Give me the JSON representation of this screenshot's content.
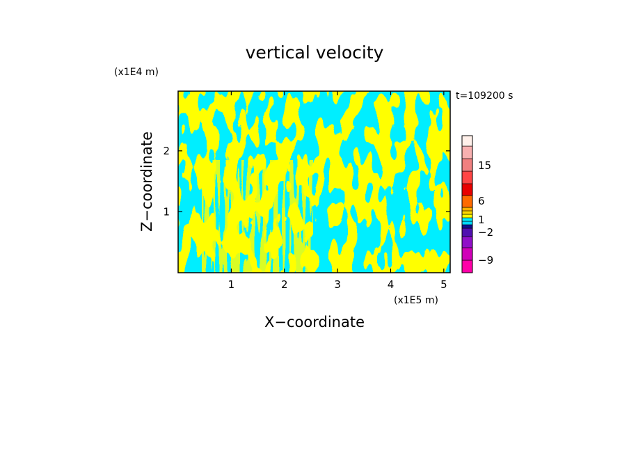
{
  "chart_data": {
    "type": "heatmap",
    "title": "vertical velocity",
    "xlabel": "X−coordinate",
    "ylabel": "Z−coordinate",
    "x_scale_label": "(x1E5 m)",
    "y_scale_label": "(x1E4 m)",
    "time_label": "t=109200 s",
    "xlim": [
      0,
      5.12
    ],
    "ylim": [
      0,
      2.98
    ],
    "x_ticks": [
      {
        "value": 1,
        "label": "1"
      },
      {
        "value": 2,
        "label": "2"
      },
      {
        "value": 3,
        "label": "3"
      },
      {
        "value": 4,
        "label": "4"
      },
      {
        "value": 5,
        "label": "5"
      }
    ],
    "y_ticks": [
      {
        "value": 1,
        "label": "1"
      },
      {
        "value": 2,
        "label": "2"
      }
    ],
    "colorbar": {
      "levels": [
        {
          "color": "#ff00a8"
        },
        {
          "color": "#d000b8"
        },
        {
          "color": "#9010c8"
        },
        {
          "color": "#5010b0"
        },
        {
          "color": "#101090"
        },
        {
          "color": "#00d8ff"
        },
        {
          "color": "#00f0ff"
        },
        {
          "color": "#ffff00"
        },
        {
          "color": "#ffd800"
        },
        {
          "color": "#ffb000"
        },
        {
          "color": "#ff6a00"
        },
        {
          "color": "#e80000"
        },
        {
          "color": "#ff4444"
        },
        {
          "color": "#f08080"
        },
        {
          "color": "#f8b0b0"
        },
        {
          "color": "#fff0ea"
        }
      ],
      "tick_labels": [
        "−9",
        "−2",
        "1",
        "6",
        "15"
      ]
    },
    "dominant_colors": {
      "positive": "#ffff00",
      "negative": "#00eeff"
    }
  }
}
